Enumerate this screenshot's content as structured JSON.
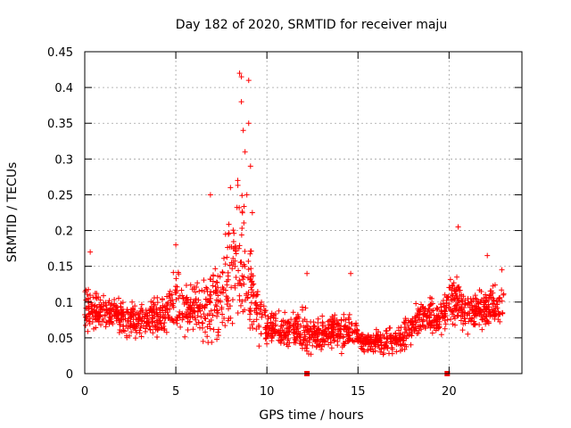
{
  "chart_data": {
    "type": "scatter",
    "title": "Day 182 of 2020, SRMTID for receiver maju",
    "xlabel": "GPS time / hours",
    "ylabel": "SRMTID / TECUs",
    "xlim": [
      0,
      24
    ],
    "ylim": [
      0,
      0.45
    ],
    "xticks": [
      0,
      5,
      10,
      15,
      20
    ],
    "yticks": [
      0,
      0.05,
      0.1,
      0.15,
      0.2,
      0.25,
      0.3,
      0.35,
      0.4,
      0.45
    ],
    "xtick_labels": [
      "0",
      "5",
      "10",
      "15",
      "20"
    ],
    "ytick_labels": [
      "0",
      "0.05",
      "0.1",
      "0.15",
      "0.2",
      "0.25",
      "0.3",
      "0.35",
      "0.4",
      "0.45"
    ],
    "grid": true,
    "marker": "+",
    "color": "#ff0000",
    "envelope": {
      "description": "approximate median and spread of the SRMTID scatter per half hour",
      "x": [
        0.0,
        0.5,
        1.0,
        1.5,
        2.0,
        2.5,
        3.0,
        3.5,
        4.0,
        4.5,
        5.0,
        5.5,
        6.0,
        6.5,
        7.0,
        7.5,
        8.0,
        8.5,
        9.0,
        9.5,
        10.0,
        10.5,
        11.0,
        11.5,
        12.0,
        12.5,
        13.0,
        13.5,
        14.0,
        14.5,
        15.0,
        15.5,
        16.0,
        16.5,
        17.0,
        17.5,
        18.0,
        18.5,
        19.0,
        19.5,
        20.0,
        20.5,
        21.0,
        21.5,
        22.0,
        22.5,
        23.0
      ],
      "median": [
        0.095,
        0.09,
        0.085,
        0.085,
        0.08,
        0.075,
        0.075,
        0.075,
        0.08,
        0.085,
        0.1,
        0.09,
        0.085,
        0.09,
        0.1,
        0.11,
        0.13,
        0.16,
        0.13,
        0.08,
        0.065,
        0.06,
        0.06,
        0.06,
        0.06,
        0.055,
        0.055,
        0.06,
        0.055,
        0.06,
        0.05,
        0.045,
        0.045,
        0.045,
        0.045,
        0.05,
        0.07,
        0.08,
        0.08,
        0.08,
        0.1,
        0.1,
        0.085,
        0.09,
        0.09,
        0.09,
        0.1
      ],
      "spread": [
        0.03,
        0.025,
        0.02,
        0.02,
        0.02,
        0.025,
        0.02,
        0.02,
        0.025,
        0.03,
        0.04,
        0.03,
        0.03,
        0.04,
        0.05,
        0.06,
        0.07,
        0.1,
        0.07,
        0.03,
        0.02,
        0.02,
        0.02,
        0.02,
        0.025,
        0.02,
        0.02,
        0.02,
        0.02,
        0.02,
        0.015,
        0.015,
        0.015,
        0.015,
        0.015,
        0.02,
        0.02,
        0.02,
        0.02,
        0.02,
        0.025,
        0.03,
        0.025,
        0.025,
        0.025,
        0.025,
        0.025
      ]
    },
    "peaks": [
      {
        "x": 0.3,
        "y": 0.17
      },
      {
        "x": 5.0,
        "y": 0.18
      },
      {
        "x": 6.9,
        "y": 0.25
      },
      {
        "x": 8.5,
        "y": 0.42
      },
      {
        "x": 8.6,
        "y": 0.415
      },
      {
        "x": 9.0,
        "y": 0.41
      },
      {
        "x": 8.6,
        "y": 0.38
      },
      {
        "x": 9.0,
        "y": 0.35
      },
      {
        "x": 8.7,
        "y": 0.34
      },
      {
        "x": 8.8,
        "y": 0.31
      },
      {
        "x": 9.1,
        "y": 0.29
      },
      {
        "x": 8.4,
        "y": 0.27
      },
      {
        "x": 8.0,
        "y": 0.26
      },
      {
        "x": 8.9,
        "y": 0.25
      },
      {
        "x": 9.2,
        "y": 0.225
      },
      {
        "x": 12.2,
        "y": 0.14
      },
      {
        "x": 14.6,
        "y": 0.14
      },
      {
        "x": 20.5,
        "y": 0.205
      },
      {
        "x": 22.1,
        "y": 0.165
      },
      {
        "x": 22.9,
        "y": 0.145
      }
    ],
    "zero_markers": [
      {
        "x": 12.2,
        "y": 0.0
      },
      {
        "x": 19.9,
        "y": 0.0
      }
    ],
    "num_points": 1800
  }
}
